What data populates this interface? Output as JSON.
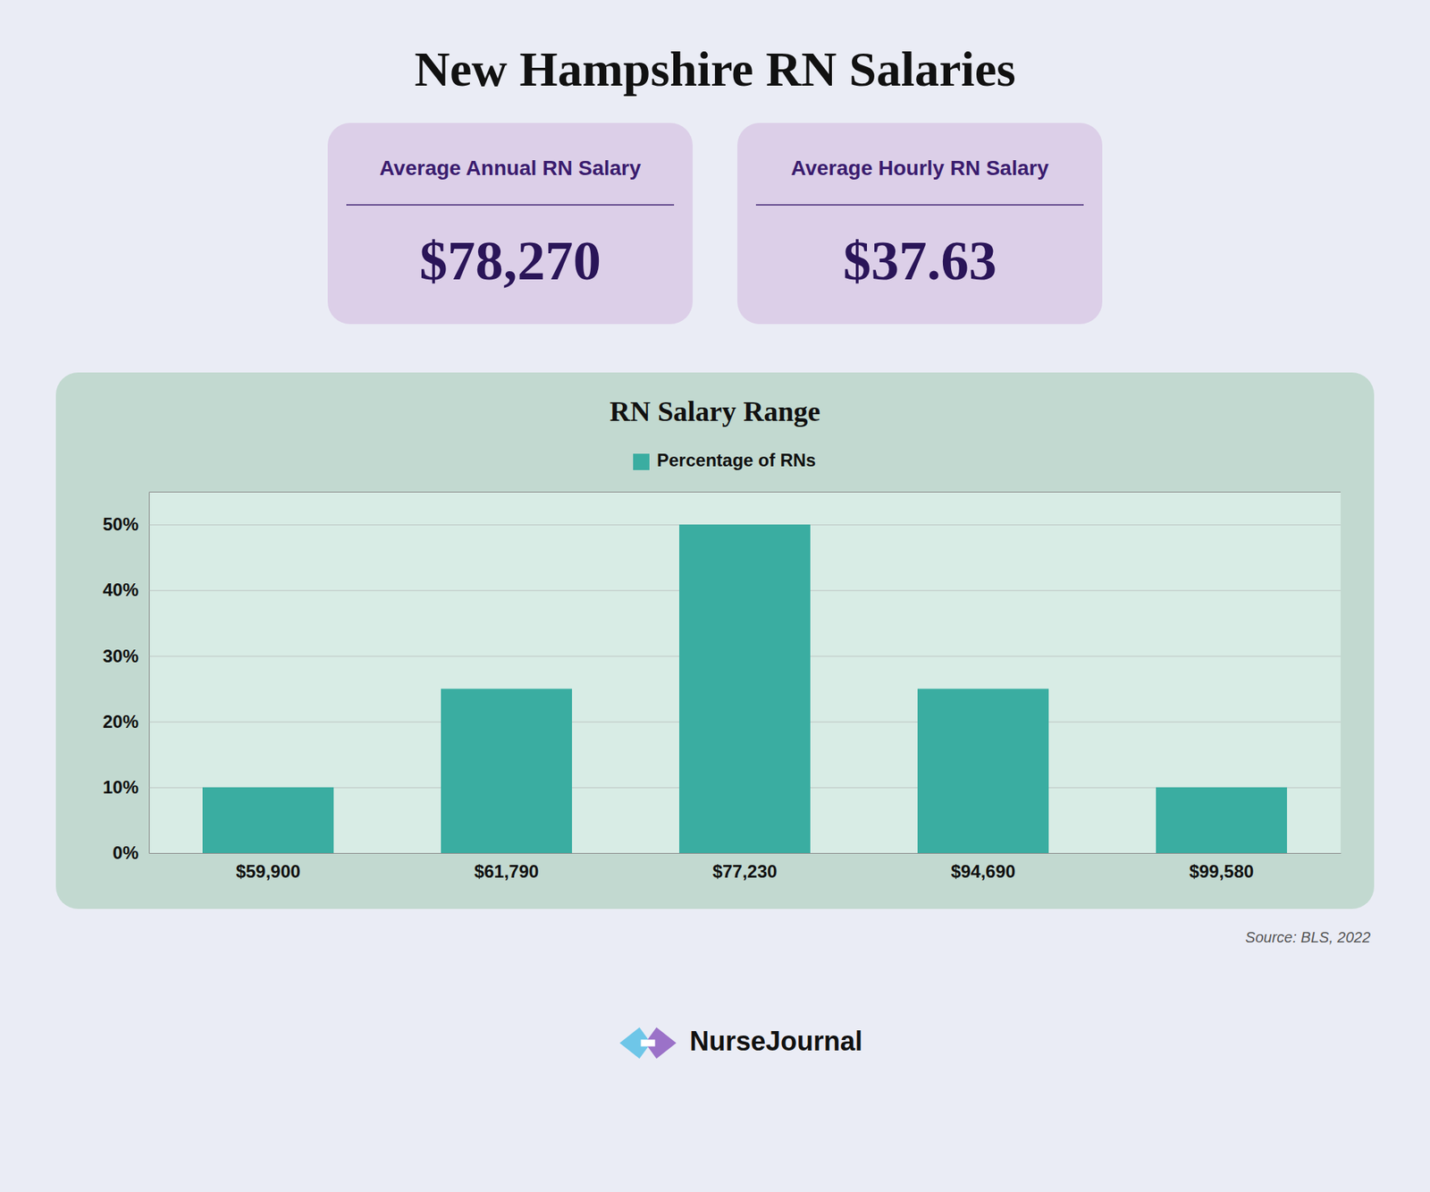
{
  "chart_data": {
    "type": "bar",
    "title": "New Hampshire RN Salaries",
    "subtitle": "RN Salary Range",
    "annotations": [
      "Average Annual RN Salary",
      "$78,270",
      "Average Hourly RN Salary",
      "$37.63",
      "Source: BLS, 2022",
      "NurseJournal"
    ],
    "categories": [
      "$59,900",
      "$61,790",
      "$77,230",
      "$94,690",
      "$99,580"
    ],
    "series": [
      {
        "name": "Percentage of RNs",
        "color": "#3aada1",
        "values": [
          10,
          25,
          50,
          25,
          10
        ]
      }
    ],
    "ylim": [
      0,
      55
    ],
    "yticks": [
      {
        "value": 0,
        "label": "0%"
      },
      {
        "value": 10,
        "label": "10%"
      },
      {
        "value": 20,
        "label": "20%"
      },
      {
        "value": 30,
        "label": "30%"
      },
      {
        "value": 40,
        "label": "40%"
      },
      {
        "value": 50,
        "label": "50%"
      }
    ],
    "grid": true,
    "legend": "top"
  }
}
